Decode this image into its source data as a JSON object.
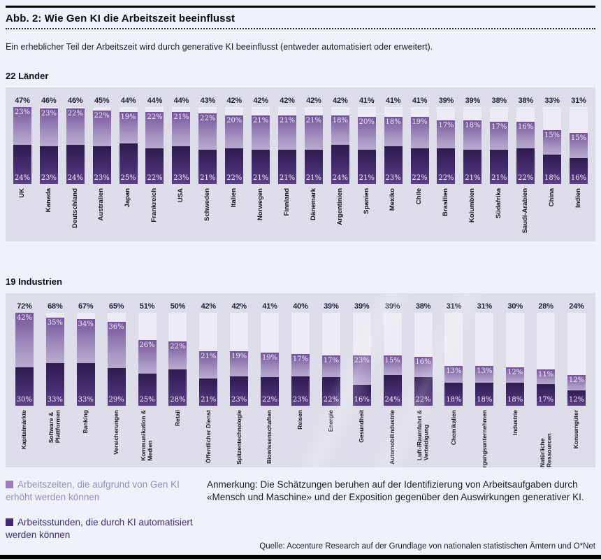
{
  "header": {
    "title": "Abb. 2: Wie Gen KI die Arbeitszeit beeinflusst"
  },
  "subtitle": "Ein erheblicher Teil der Arbeitszeit wird durch generative KI beeinflusst (entweder automatisiert oder erweitert).",
  "legend": [
    {
      "label": "Arbeitszeiten, die aufgrund von Gen KI erhöht werden können",
      "color": "#9b7eba",
      "text_color": "#9d89bf"
    },
    {
      "label": "Arbeitsstunden, die durch KI automatisiert werden können",
      "color": "#402a72",
      "text_color": "#3f2c7a"
    }
  ],
  "note": "Anmerkung: Die Schätzungen beruhen auf der Identifizierung von Arbeitsaufgaben durch «Mensch und Maschine» und der Exposition gegenüber den Auswirkungen generativer KI.",
  "source": "Quelle: Accenture Research auf der Grundlage von nationalen statistischen Ämtern und O*Net",
  "colors": {
    "panel_background": "#dcdde8",
    "bar_track": "#eceaf2",
    "augmented_gradient_top": "#74549b",
    "augmented_gradient_bottom": "#b9abce",
    "automated_gradient_top": "#2f1c51",
    "automated_gradient_bottom": "#5e4288",
    "total_label": "#23233d"
  },
  "chart_data": [
    {
      "type": "bar",
      "stacked": true,
      "title": "22 Länder",
      "unit": "%",
      "scale_max": 47,
      "categories": [
        "UK",
        "Kanada",
        "Deutschland",
        "Australien",
        "Japan",
        "Frankreich",
        "USA",
        "Schweden",
        "Italien",
        "Norwegen",
        "Finnland",
        "Dänemark",
        "Argentinien",
        "Spanien",
        "Mexiko",
        "Chile",
        "Brasilien",
        "Kolumbien",
        "Südafrika",
        "Saudi-Arabien",
        "China",
        "Indien"
      ],
      "totals": [
        47,
        46,
        46,
        45,
        44,
        44,
        44,
        43,
        42,
        42,
        42,
        42,
        42,
        41,
        41,
        41,
        39,
        39,
        38,
        38,
        33,
        31
      ],
      "series": [
        {
          "name": "Arbeitszeiten, die aufgrund von Gen KI erhöht werden können",
          "values": [
            23,
            23,
            22,
            22,
            19,
            22,
            21,
            22,
            20,
            21,
            21,
            21,
            18,
            20,
            18,
            19,
            17,
            18,
            17,
            16,
            15,
            15
          ]
        },
        {
          "name": "Arbeitsstunden, die durch KI automatisiert werden können",
          "values": [
            24,
            23,
            24,
            23,
            25,
            22,
            23,
            21,
            22,
            21,
            21,
            21,
            24,
            21,
            23,
            22,
            22,
            21,
            21,
            22,
            18,
            16
          ]
        }
      ]
    },
    {
      "type": "bar",
      "stacked": true,
      "title": "19 Industrien",
      "unit": "%",
      "scale_max": 72,
      "categories": [
        "Kapitalmärkte",
        "Software & Plattformen",
        "Banking",
        "Versicherungen",
        "Kommunikation & Medien",
        "Retail",
        "Öffentlicher Dienst",
        "Spitzentechnologie",
        "Biowissenschaften",
        "Reisen",
        "Energie",
        "Gesundheit",
        "Automobilindustrie",
        "Luft-/Raumfahrt & Verteidigung",
        "Chemikalien",
        "Versorgungsunternehmen",
        "Industrie",
        "Natürliche Ressourcen",
        "Konsumgüter"
      ],
      "categories_display": [
        "Kapitalmärkte",
        "Software &\nPlattformen",
        "Banking",
        "Versicherungen",
        "Kommunikation &\nMedien",
        "Retail",
        "Öffentlicher Dienst",
        "Spitzentechnologie",
        "Biowissenschaften",
        "Reisen",
        "Energie",
        "Gesundheit",
        "Automobilindustrie",
        "Luft-/Raumfahrt &\nVerteidigung",
        "Chemikalien",
        "Versorgungsunternehmen",
        "Industrie",
        "Natürliche Ressourcen",
        "Konsumgüter"
      ],
      "totals": [
        72,
        68,
        67,
        65,
        51,
        50,
        42,
        42,
        41,
        40,
        39,
        39,
        39,
        38,
        31,
        31,
        30,
        28,
        24
      ],
      "series": [
        {
          "name": "Arbeitszeiten, die aufgrund von Gen KI erhöht werden können",
          "values": [
            42,
            35,
            34,
            36,
            26,
            22,
            21,
            19,
            19,
            17,
            17,
            23,
            15,
            16,
            13,
            13,
            12,
            11,
            12
          ]
        },
        {
          "name": "Arbeitsstunden, die durch KI automatisiert werden können",
          "values": [
            30,
            33,
            33,
            29,
            25,
            28,
            21,
            23,
            22,
            23,
            22,
            16,
            24,
            22,
            18,
            18,
            18,
            17,
            12
          ]
        }
      ]
    }
  ]
}
